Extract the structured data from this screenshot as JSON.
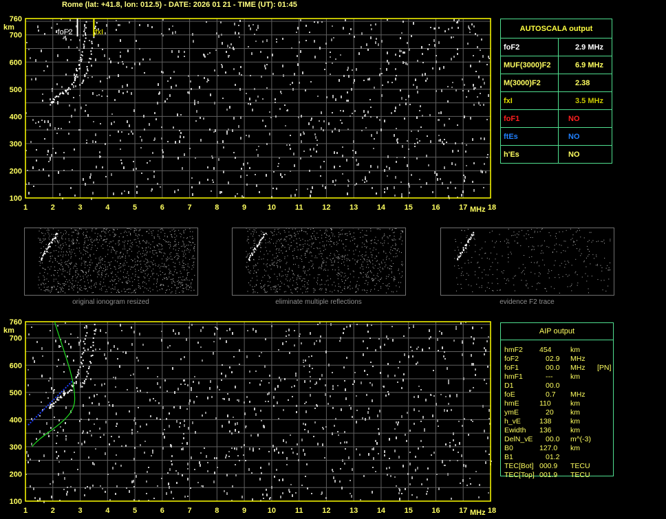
{
  "title": "Rome (lat: +41.8, lon: 012.5) - DATE: 2026 01 21 - TIME (UT): 01:45",
  "plot": {
    "y_unit": "km",
    "x_unit": "MHz",
    "y_ticks": [
      "760",
      "700",
      "600",
      "500",
      "400",
      "300",
      "200",
      "100"
    ],
    "x_ticks": [
      "1",
      "2",
      "3",
      "4",
      "5",
      "6",
      "7",
      "8",
      "9",
      "10",
      "11",
      "12",
      "13",
      "14",
      "15",
      "16",
      "17",
      "18"
    ],
    "fof2_marker": "foF2",
    "fxi_marker": "fxI",
    "fof2_value": 2.9,
    "fxi_value": 3.5
  },
  "autoscala": {
    "title": "AUTOSCALA output",
    "rows": [
      {
        "label": "foF2",
        "value": "2.9 MHz",
        "label_color": "#ffffff",
        "value_color": "#ffffff"
      },
      {
        "label": "MUF(3000)F2",
        "value": "6.9 MHz",
        "label_color": "#ffff60",
        "value_color": "#ffff60"
      },
      {
        "label": "M(3000)F2",
        "value": "2.38",
        "label_color": "#ffff60",
        "value_color": "#ffff60"
      },
      {
        "label": "fxI",
        "value": "3.5 MHz",
        "label_color": "#e0e000",
        "value_color": "#c8c800"
      },
      {
        "label": "foF1",
        "value": "NO",
        "label_color": "#ff2020",
        "value_color": "#ff2020"
      },
      {
        "label": "ftEs",
        "value": "NO",
        "label_color": "#2080ff",
        "value_color": "#2080ff"
      },
      {
        "label": "h'Es",
        "value": "NO",
        "label_color": "#ffff60",
        "value_color": "#ffff60"
      }
    ]
  },
  "thumbnails": [
    {
      "caption": "original ionogram resized"
    },
    {
      "caption": "eliminate multiple reflections"
    },
    {
      "caption": "evidence F2 trace"
    }
  ],
  "aip": {
    "title": "AIP output",
    "rows": [
      {
        "name": "hmF2",
        "value": "454",
        "unit": "km",
        "extra": ""
      },
      {
        "name": "foF2",
        "value": "02.9",
        "unit": "MHz",
        "extra": ""
      },
      {
        "name": "foF1",
        "value": "00.0",
        "unit": "MHz",
        "extra": "[PN]"
      },
      {
        "name": "hmF1",
        "value": "---",
        "unit": "km",
        "extra": ""
      },
      {
        "name": "D1",
        "value": "00.0",
        "unit": "",
        "extra": ""
      },
      {
        "name": "foE",
        "value": "0.7",
        "unit": "MHz",
        "extra": ""
      },
      {
        "name": "hmE",
        "value": "110",
        "unit": "km",
        "extra": ""
      },
      {
        "name": "ymE",
        "value": "20",
        "unit": "km",
        "extra": ""
      },
      {
        "name": "h_vE",
        "value": "138",
        "unit": "km",
        "extra": ""
      },
      {
        "name": "Ewidth",
        "value": "136",
        "unit": "km",
        "extra": ""
      },
      {
        "name": "DelN_vE",
        "value": "00.0",
        "unit": "m^(-3)",
        "extra": ""
      },
      {
        "name": "B0",
        "value": "127.0",
        "unit": "km",
        "extra": ""
      },
      {
        "name": "B1",
        "value": "01.2",
        "unit": "",
        "extra": ""
      },
      {
        "name": "TEC[Bot]",
        "value": "000.9",
        "unit": "TECU",
        "extra": ""
      },
      {
        "name": "TEC[Top]",
        "value": "001.9",
        "unit": "TECU",
        "extra": ""
      }
    ]
  },
  "colors": {
    "axis": "#ffff00",
    "grid": "#606060",
    "table_border": "#50e090",
    "profile": "#20e020",
    "trace_fit": "#2040ff"
  }
}
